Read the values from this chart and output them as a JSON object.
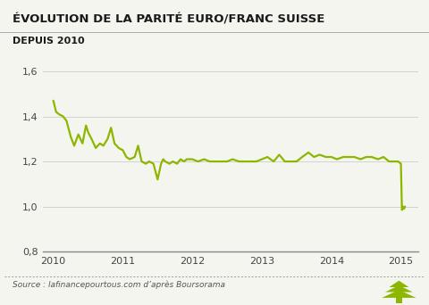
{
  "title": "ÉVOLUTION DE LA PARITÉ EURO/FRANC SUISSE",
  "subtitle": "DEPUIS 2010",
  "source": "Source : lafinancepourtous.com d’après Boursorama",
  "line_color": "#8db600",
  "bg_color": "#f5f5f0",
  "grid_color": "#cccccc",
  "ylim": [
    0.8,
    1.7
  ],
  "yticks": [
    0.8,
    1.0,
    1.2,
    1.4,
    1.6
  ],
  "xlim_start": 2009.85,
  "xlim_end": 2015.25,
  "xtick_labels": [
    "2010",
    "2011",
    "2012",
    "2013",
    "2014",
    "2015"
  ],
  "xtick_positions": [
    2010,
    2011,
    2012,
    2013,
    2014,
    2015
  ],
  "data": [
    [
      2010.0,
      1.47
    ],
    [
      2010.04,
      1.42
    ],
    [
      2010.08,
      1.41
    ],
    [
      2010.14,
      1.4
    ],
    [
      2010.19,
      1.38
    ],
    [
      2010.25,
      1.31
    ],
    [
      2010.3,
      1.27
    ],
    [
      2010.36,
      1.32
    ],
    [
      2010.42,
      1.28
    ],
    [
      2010.47,
      1.36
    ],
    [
      2010.5,
      1.33
    ],
    [
      2010.55,
      1.3
    ],
    [
      2010.61,
      1.26
    ],
    [
      2010.67,
      1.28
    ],
    [
      2010.72,
      1.27
    ],
    [
      2010.78,
      1.3
    ],
    [
      2010.83,
      1.35
    ],
    [
      2010.88,
      1.28
    ],
    [
      2010.94,
      1.26
    ],
    [
      2011.0,
      1.25
    ],
    [
      2011.05,
      1.22
    ],
    [
      2011.1,
      1.21
    ],
    [
      2011.17,
      1.22
    ],
    [
      2011.22,
      1.27
    ],
    [
      2011.27,
      1.2
    ],
    [
      2011.33,
      1.19
    ],
    [
      2011.38,
      1.2
    ],
    [
      2011.44,
      1.19
    ],
    [
      2011.5,
      1.12
    ],
    [
      2011.55,
      1.19
    ],
    [
      2011.58,
      1.21
    ],
    [
      2011.61,
      1.2
    ],
    [
      2011.67,
      1.19
    ],
    [
      2011.72,
      1.2
    ],
    [
      2011.78,
      1.19
    ],
    [
      2011.83,
      1.21
    ],
    [
      2011.88,
      1.2
    ],
    [
      2011.92,
      1.21
    ],
    [
      2012.0,
      1.21
    ],
    [
      2012.08,
      1.2
    ],
    [
      2012.17,
      1.21
    ],
    [
      2012.25,
      1.2
    ],
    [
      2012.33,
      1.2
    ],
    [
      2012.42,
      1.2
    ],
    [
      2012.5,
      1.2
    ],
    [
      2012.58,
      1.21
    ],
    [
      2012.67,
      1.2
    ],
    [
      2012.75,
      1.2
    ],
    [
      2012.83,
      1.2
    ],
    [
      2012.92,
      1.2
    ],
    [
      2013.0,
      1.21
    ],
    [
      2013.08,
      1.22
    ],
    [
      2013.17,
      1.2
    ],
    [
      2013.25,
      1.23
    ],
    [
      2013.33,
      1.2
    ],
    [
      2013.42,
      1.2
    ],
    [
      2013.5,
      1.2
    ],
    [
      2013.58,
      1.22
    ],
    [
      2013.67,
      1.24
    ],
    [
      2013.75,
      1.22
    ],
    [
      2013.83,
      1.23
    ],
    [
      2013.92,
      1.22
    ],
    [
      2014.0,
      1.22
    ],
    [
      2014.08,
      1.21
    ],
    [
      2014.17,
      1.22
    ],
    [
      2014.25,
      1.22
    ],
    [
      2014.33,
      1.22
    ],
    [
      2014.42,
      1.21
    ],
    [
      2014.5,
      1.22
    ],
    [
      2014.58,
      1.22
    ],
    [
      2014.67,
      1.21
    ],
    [
      2014.75,
      1.22
    ],
    [
      2014.83,
      1.2
    ],
    [
      2014.88,
      1.2
    ],
    [
      2014.92,
      1.2
    ],
    [
      2014.96,
      1.2
    ],
    [
      2015.0,
      1.19
    ],
    [
      2015.015,
      0.985
    ],
    [
      2015.03,
      1.0
    ],
    [
      2015.045,
      0.99
    ],
    [
      2015.06,
      1.0
    ]
  ]
}
